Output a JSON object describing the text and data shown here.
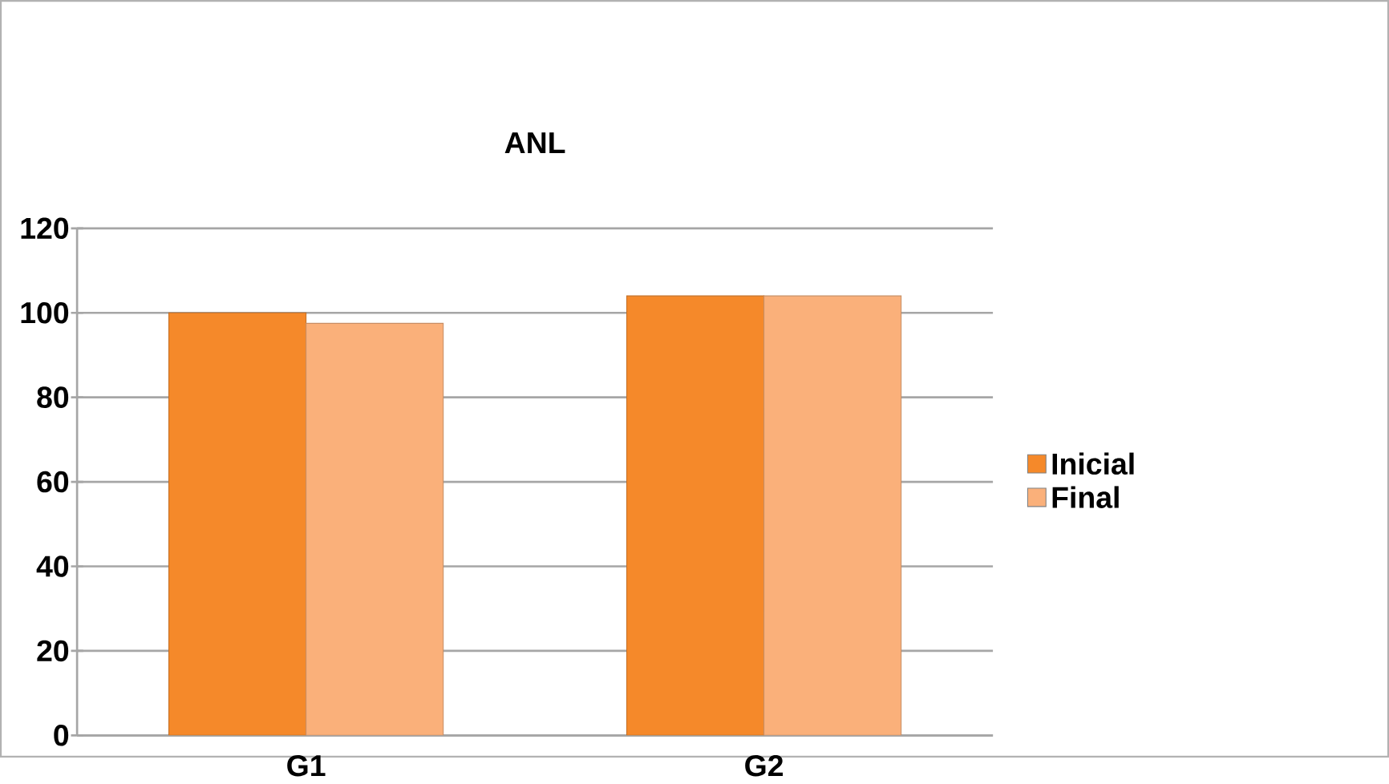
{
  "chart_data": {
    "type": "bar",
    "title": "ANL",
    "categories": [
      "G1",
      "G2"
    ],
    "series": [
      {
        "name": "Inicial",
        "color": "#f5892a",
        "values": [
          100,
          104
        ]
      },
      {
        "name": "Final",
        "color": "#fab07a",
        "values": [
          97.5,
          104
        ]
      }
    ],
    "ylim": [
      0,
      120
    ],
    "yticks": [
      0,
      20,
      40,
      60,
      80,
      100,
      120
    ],
    "grid": "y",
    "legend": "right"
  }
}
